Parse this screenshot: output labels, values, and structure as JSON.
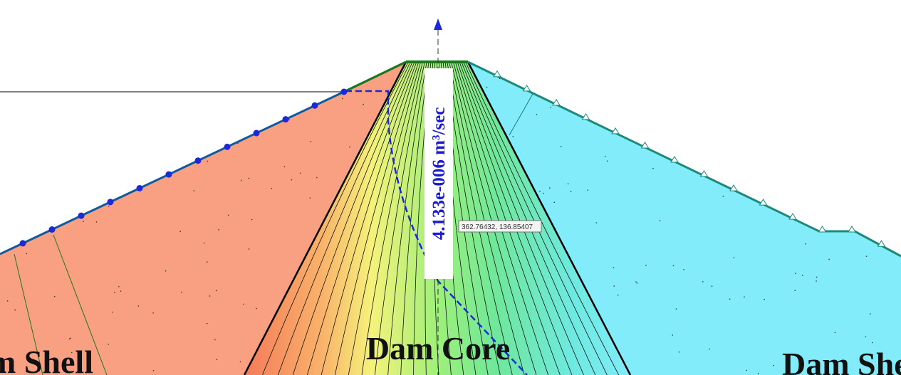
{
  "labels": {
    "left_shell": "Dam Shell",
    "core": "Dam Core",
    "right_shell": "Dam Shell"
  },
  "flux_label": "4.133e-006 m³/sec",
  "cursor_tooltip": "362.76432, 136.85407"
}
